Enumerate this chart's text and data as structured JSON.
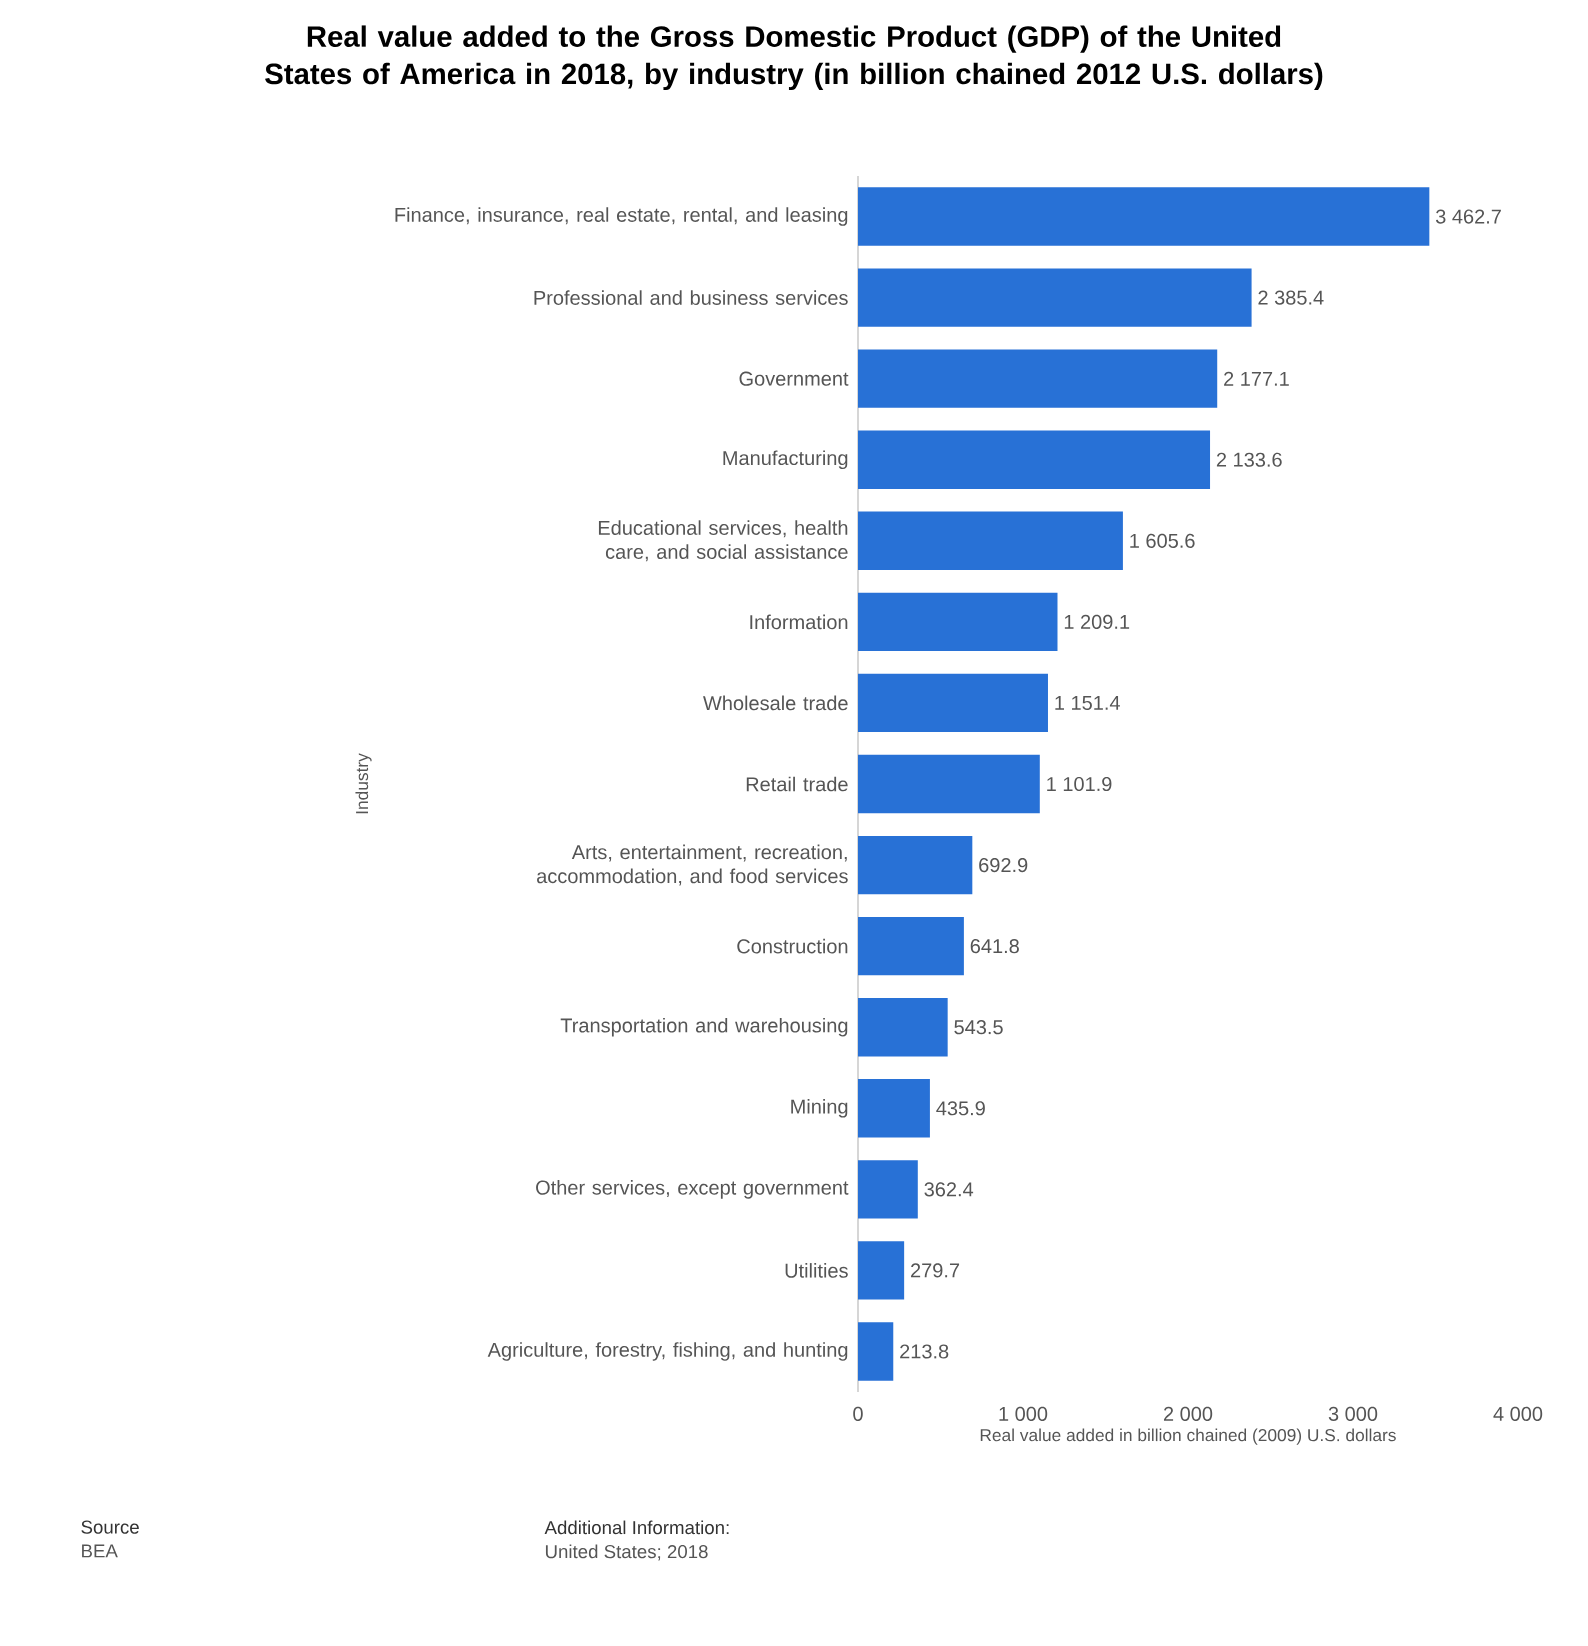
{
  "chart_data": {
    "type": "bar",
    "orientation": "horizontal",
    "title": "Real value added to the Gross Domestic Product (GDP) of the United States of America in 2018, by industry (in billion chained 2012 U.S. dollars)",
    "xlabel": "Real value added in billion chained (2009) U.S. dollars",
    "ylabel": "Industry",
    "categories": [
      "Finance, insurance, real estate, rental, and leasing",
      "Professional and business services",
      "Government",
      "Manufacturing",
      "Educational services, health care, and social assistance",
      "Information",
      "Wholesale trade",
      "Retail trade",
      "Arts, entertainment, recreation, accommodation, and food services",
      "Construction",
      "Transportation and warehousing",
      "Mining",
      "Other services, except government",
      "Utilities",
      "Agriculture, forestry, fishing, and hunting"
    ],
    "values": [
      3462.7,
      2385.4,
      2177.1,
      2133.6,
      1605.6,
      1209.1,
      1151.4,
      1101.9,
      692.9,
      641.8,
      543.5,
      435.9,
      362.4,
      279.7,
      213.8
    ],
    "value_labels": [
      "3 462.7",
      "2 385.4",
      "2 177.1",
      "2 133.6",
      "1 605.6",
      "1 209.1",
      "1 151.4",
      "1 101.9",
      "692.9",
      "641.8",
      "543.5",
      "435.9",
      "362.4",
      "279.7",
      "213.8"
    ],
    "color": "#2871d6",
    "xlim": [
      0,
      4000
    ],
    "xticks": [
      0,
      {
        "value": 1000,
        "label": "1 000"
      },
      {
        "value": 2000,
        "label": "2 000"
      },
      {
        "value": 3000,
        "label": "3 000"
      },
      {
        "value": 4000,
        "label": "4 000"
      }
    ],
    "grid": false,
    "annotations": [
      "Source",
      "BEA",
      "Additional Information:",
      "United States; 2018"
    ]
  }
}
